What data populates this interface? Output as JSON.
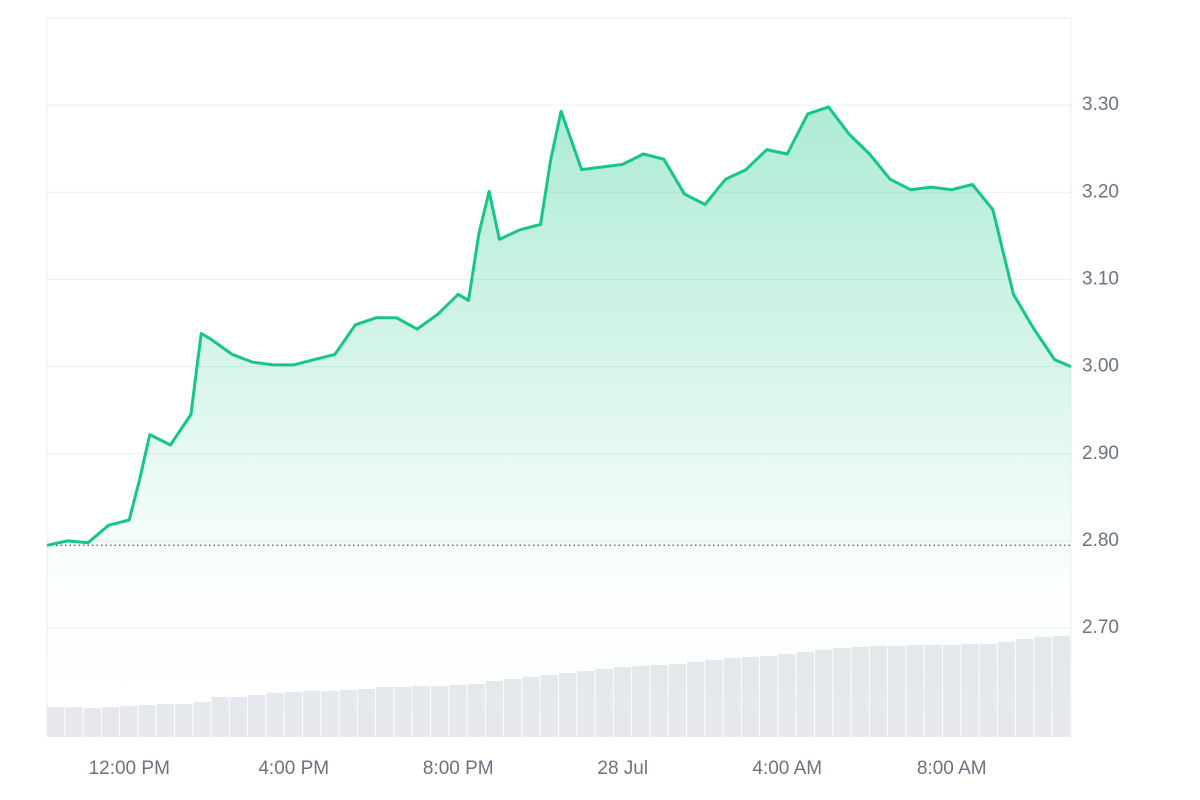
{
  "chart_data": {
    "type": "area",
    "x": [
      10,
      10.5,
      11,
      11.5,
      12,
      12.25,
      12.5,
      13,
      13.5,
      13.75,
      14,
      14.5,
      15,
      15.5,
      16,
      16.5,
      17,
      17.5,
      18,
      18.5,
      19,
      19.5,
      20,
      20.25,
      20.5,
      20.75,
      21,
      21.5,
      22,
      22.25,
      22.5,
      23,
      23.5,
      24,
      24.5,
      25,
      25.5,
      26,
      26.5,
      27,
      27.5,
      28,
      28.5,
      29,
      29.5,
      30,
      30.5,
      31,
      31.5,
      32,
      32.5,
      33,
      33.5,
      34,
      34.5,
      34.9
    ],
    "series": [
      {
        "color": "#16c784",
        "values": [
          2.795,
          2.8,
          2.798,
          2.818,
          2.824,
          2.87,
          2.922,
          2.91,
          2.945,
          3.038,
          3.031,
          3.014,
          3.005,
          3.002,
          3.002,
          3.008,
          3.014,
          3.048,
          3.056,
          3.056,
          3.043,
          3.06,
          3.083,
          3.076,
          3.152,
          3.201,
          3.146,
          3.157,
          3.163,
          3.238,
          3.293,
          3.226,
          3.229,
          3.232,
          3.244,
          3.238,
          3.198,
          3.186,
          3.215,
          3.226,
          3.249,
          3.244,
          3.29,
          3.298,
          3.267,
          3.244,
          3.215,
          3.203,
          3.206,
          3.203,
          3.209,
          3.18,
          3.083,
          3.043,
          3.008,
          3.0
        ]
      }
    ],
    "volume": {
      "color": "#e6e8ec",
      "values": [
        30,
        30,
        29,
        30,
        31,
        32,
        33,
        33,
        35,
        40,
        40,
        42,
        44,
        45,
        46,
        46,
        47,
        48,
        50,
        50,
        51,
        51,
        52,
        53,
        56,
        58,
        60,
        62,
        64,
        66,
        68,
        70,
        71,
        72,
        73,
        75,
        77,
        79,
        80,
        81,
        83,
        85,
        87,
        89,
        90,
        91,
        91,
        92,
        92,
        92,
        93,
        93,
        95,
        98,
        100,
        101
      ]
    },
    "xlim": [
      10,
      34.9
    ],
    "xticks": [
      {
        "value": 12,
        "label": "12:00 PM"
      },
      {
        "value": 16,
        "label": "4:00 PM"
      },
      {
        "value": 20,
        "label": "8:00 PM"
      },
      {
        "value": 24,
        "label": "28 Jul"
      },
      {
        "value": 28,
        "label": "4:00 AM"
      },
      {
        "value": 32,
        "label": "8:00 AM"
      }
    ],
    "ylim": [
      2.575,
      3.4
    ],
    "yticks": [
      {
        "value": 2.7,
        "label": "2.70"
      },
      {
        "value": 2.8,
        "label": "2.80"
      },
      {
        "value": 2.9,
        "label": "2.90"
      },
      {
        "value": 3.0,
        "label": "3.00"
      },
      {
        "value": 3.1,
        "label": "3.10"
      },
      {
        "value": 3.2,
        "label": "3.20"
      },
      {
        "value": 3.3,
        "label": "3.30"
      }
    ],
    "grid": true
  }
}
